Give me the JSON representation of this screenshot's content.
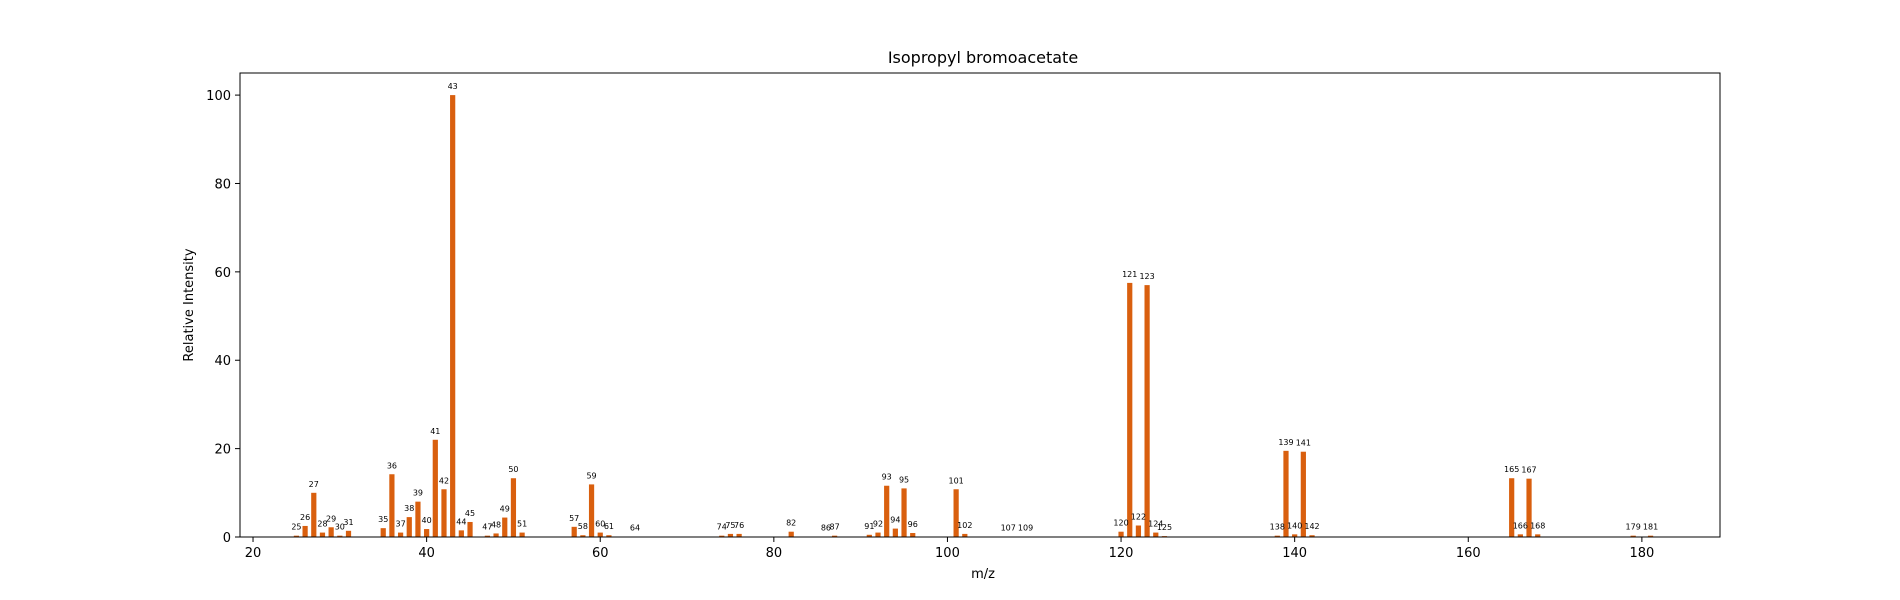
{
  "chart_data": {
    "type": "bar",
    "title": "Isopropyl bromoacetate",
    "xlabel": "m/z",
    "ylabel": "Relative Intensity",
    "xlim": [
      18.5,
      189
    ],
    "ylim": [
      0,
      105
    ],
    "xticks": [
      20,
      40,
      60,
      80,
      100,
      120,
      140,
      160,
      180
    ],
    "yticks": [
      0,
      20,
      40,
      60,
      80,
      100
    ],
    "grid": false,
    "bar_color": "#d95f0e",
    "x": [
      25,
      26,
      27,
      28,
      29,
      30,
      31,
      35,
      36,
      37,
      38,
      39,
      40,
      41,
      42,
      43,
      44,
      45,
      47,
      48,
      49,
      50,
      51,
      57,
      58,
      59,
      60,
      61,
      64,
      74,
      75,
      76,
      82,
      86,
      87,
      91,
      92,
      93,
      94,
      95,
      96,
      101,
      102,
      107,
      109,
      120,
      121,
      122,
      123,
      124,
      125,
      138,
      139,
      140,
      141,
      142,
      165,
      166,
      167,
      168,
      179,
      181
    ],
    "values": [
      0.3,
      2.5,
      10.0,
      1.0,
      2.2,
      0.3,
      1.4,
      2.0,
      14.2,
      1.0,
      4.5,
      8.0,
      1.8,
      22.0,
      10.8,
      100.0,
      1.5,
      3.4,
      0.3,
      0.8,
      4.4,
      13.3,
      1.0,
      2.3,
      0.4,
      11.9,
      1.0,
      0.4,
      0.1,
      0.3,
      0.7,
      0.7,
      1.2,
      0.1,
      0.3,
      0.5,
      1.0,
      11.6,
      1.9,
      11.0,
      0.9,
      10.8,
      0.7,
      0.1,
      0.1,
      1.2,
      57.5,
      2.6,
      57.0,
      1.0,
      0.2,
      0.3,
      19.5,
      0.6,
      19.3,
      0.4,
      13.3,
      0.6,
      13.2,
      0.6,
      0.3,
      0.3
    ]
  }
}
